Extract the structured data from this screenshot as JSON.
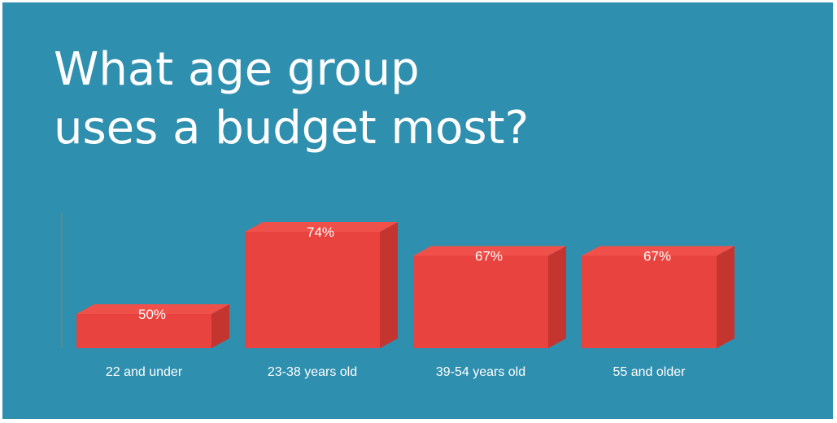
{
  "chart_data": {
    "type": "bar",
    "title_lines": [
      "What age group",
      "uses a budget most?"
    ],
    "categories": [
      "22 and under",
      "23-38 years old",
      "39-54 years old",
      "55 and older"
    ],
    "values": [
      50,
      74,
      67,
      67
    ],
    "value_labels": [
      "50%",
      "74%",
      "67%",
      "67%"
    ],
    "xlabel": "",
    "ylabel": "",
    "grid": false,
    "legend": "none"
  },
  "colors": {
    "background": "#2f8faf",
    "bar_front": "#e8433e",
    "bar_top": "#f0504a",
    "bar_side": "#c4352f",
    "text": "#ffffff"
  }
}
